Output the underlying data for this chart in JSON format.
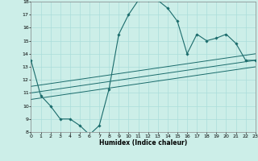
{
  "xlabel": "Humidex (Indice chaleur)",
  "bg_color": "#cceee8",
  "grid_color": "#aaddda",
  "line_color": "#1a6b6b",
  "xlim": [
    0,
    23
  ],
  "ylim": [
    8,
    18
  ],
  "xticks": [
    0,
    1,
    2,
    3,
    4,
    5,
    6,
    7,
    8,
    9,
    10,
    11,
    12,
    13,
    14,
    15,
    16,
    17,
    18,
    19,
    20,
    21,
    22,
    23
  ],
  "yticks": [
    8,
    9,
    10,
    11,
    12,
    13,
    14,
    15,
    16,
    17,
    18
  ],
  "line1_x": [
    0,
    1,
    2,
    3,
    4,
    5,
    6,
    7,
    8,
    9,
    10,
    11,
    12,
    13,
    14,
    15,
    16,
    17,
    18,
    19,
    20,
    21,
    22,
    23
  ],
  "line1_y": [
    13.5,
    10.8,
    10.0,
    9.0,
    9.0,
    8.5,
    7.8,
    8.5,
    11.3,
    15.5,
    17.0,
    18.1,
    18.1,
    18.1,
    17.5,
    16.5,
    14.0,
    15.5,
    15.0,
    15.2,
    15.5,
    14.8,
    13.5,
    13.5
  ],
  "line2_x": [
    0,
    23
  ],
  "line2_y": [
    11.5,
    14.0
  ],
  "line3_x": [
    0,
    23
  ],
  "line3_y": [
    11.0,
    13.5
  ],
  "line4_x": [
    0,
    23
  ],
  "line4_y": [
    10.5,
    13.0
  ]
}
